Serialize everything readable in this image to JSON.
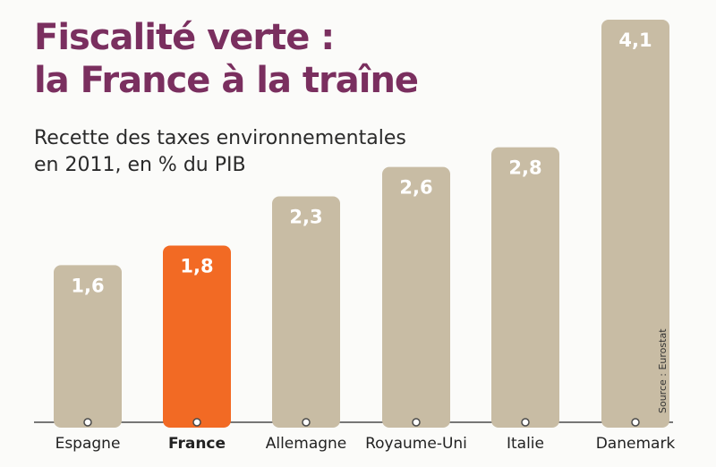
{
  "header": {
    "title_line1": "Fiscalité verte :",
    "title_line2": "la France à la traîne",
    "subtitle_line1": "Recette des taxes environnementales",
    "subtitle_line2": "en 2011, en % du PIB"
  },
  "source": "Source : Eurostat",
  "colors": {
    "bar": "#c8bca4",
    "highlight": "#f26a24",
    "value_label": "#ffffff",
    "baseline": "#4a4a4a"
  },
  "chart_data": {
    "type": "bar",
    "title": "Fiscalité verte : la France à la traîne",
    "subtitle": "Recette des taxes environnementales en 2011, en % du PIB",
    "categories": [
      "Espagne",
      "France",
      "Allemagne",
      "Royaume-Uni",
      "Italie",
      "Danemark"
    ],
    "values": [
      1.6,
      1.8,
      2.3,
      2.6,
      2.8,
      4.1
    ],
    "value_labels": [
      "1,6",
      "1,8",
      "2,3",
      "2,6",
      "2,8",
      "4,1"
    ],
    "highlight": "France",
    "ylim": [
      0,
      4.1
    ],
    "grid": false,
    "xlabel": "",
    "ylabel": ""
  }
}
